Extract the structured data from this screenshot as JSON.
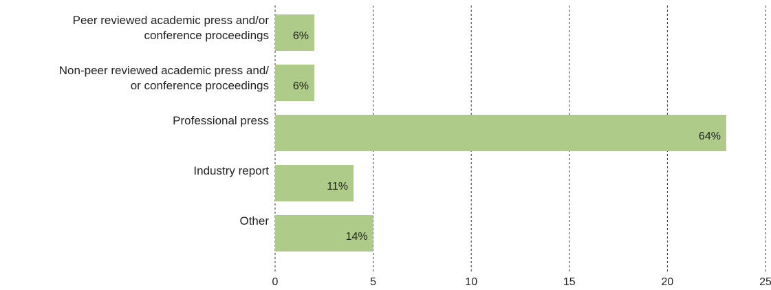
{
  "chart_data": {
    "type": "bar",
    "orientation": "horizontal",
    "categories": [
      "Peer reviewed academic press and/or\nconference proceedings",
      "Non-peer reviewed academic press and/\nor conference proceedings",
      "Professional press",
      "Industry report",
      "Other"
    ],
    "values": [
      2,
      2,
      23,
      4,
      5
    ],
    "value_labels": [
      "6%",
      "6%",
      "64%",
      "11%",
      "14%"
    ],
    "color": "#aecb8a",
    "xlim": [
      0,
      25
    ],
    "xticks": [
      0,
      5,
      10,
      15,
      20,
      25
    ],
    "grid": true
  }
}
